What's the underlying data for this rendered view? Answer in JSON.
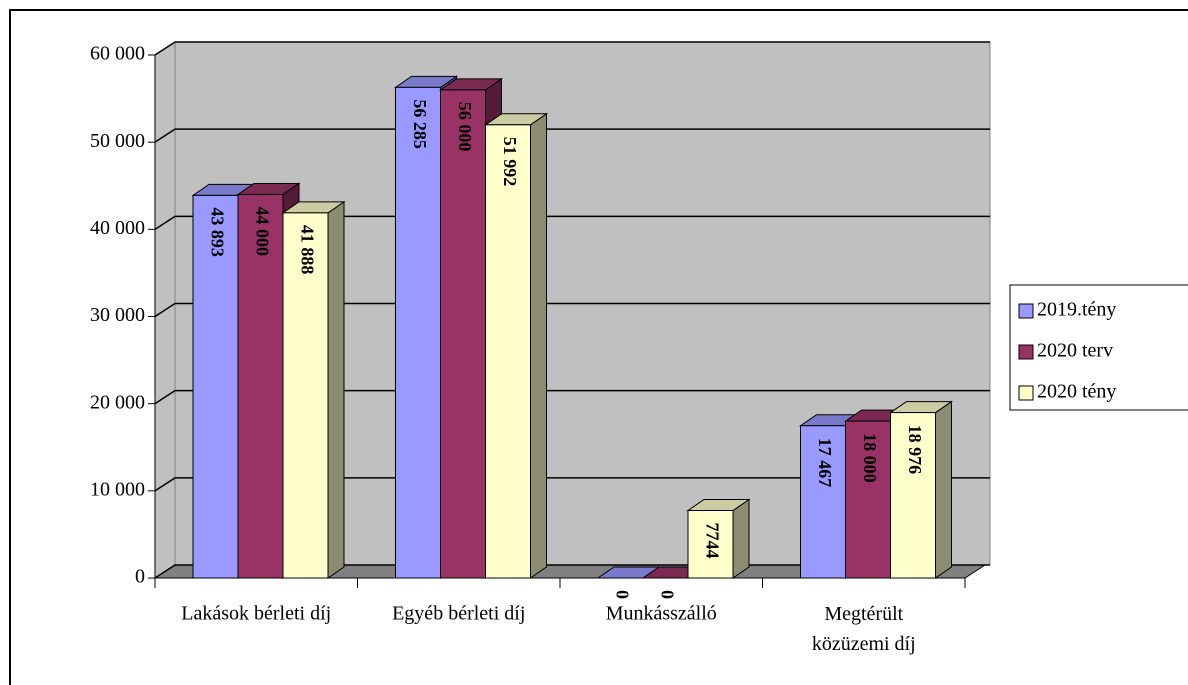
{
  "chart_data": {
    "type": "bar3d",
    "categories": [
      "Lakások bérleti díj",
      "Egyéb bérleti díj",
      "Munkásszálló",
      "Megtérült közüzemi díj"
    ],
    "series": [
      {
        "name": "2019.tény",
        "color": "#9999ff",
        "values": [
          43893,
          56285,
          0,
          17467
        ],
        "value_labels": [
          "43 893",
          "56 285",
          "0",
          "17 467"
        ]
      },
      {
        "name": "2020 terv",
        "color": "#993366",
        "values": [
          44000,
          56000,
          0,
          18000
        ],
        "value_labels": [
          "44 000",
          "56 000",
          "0",
          "18 000"
        ]
      },
      {
        "name": "2020 tény",
        "color": "#ffffcc",
        "values": [
          41888,
          51992,
          7744,
          18976
        ],
        "value_labels": [
          "41 888",
          "51 992",
          "7744",
          "18 976"
        ]
      }
    ],
    "ylim": [
      0,
      60000
    ],
    "yticks": [
      0,
      {
        "value": 10000,
        "label": "10 000"
      },
      {
        "value": 20000,
        "label": "20 000"
      },
      {
        "value": 30000,
        "label": "30 000"
      },
      {
        "value": 40000,
        "label": "40 000"
      },
      {
        "value": 50000,
        "label": "50 000"
      },
      {
        "value": 60000,
        "label": "60 000"
      }
    ],
    "grid": true,
    "legend": "right"
  }
}
